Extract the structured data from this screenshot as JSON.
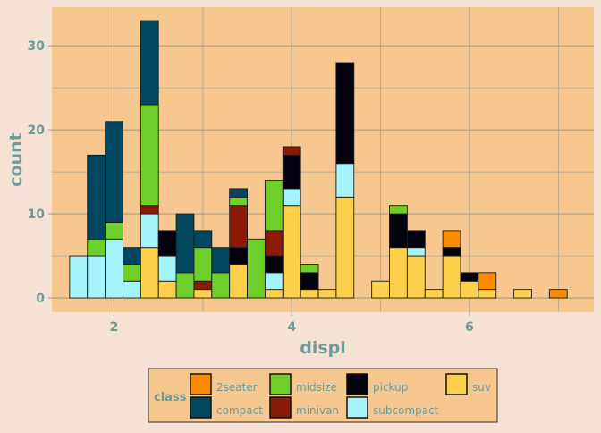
{
  "chart_data": {
    "type": "bar",
    "stacked": true,
    "xlabel": "displ",
    "ylabel": "count",
    "xlim": [
      1.3,
      7.4
    ],
    "ylim": [
      -1.7,
      34.6
    ],
    "x_ticks": [
      2,
      4,
      6
    ],
    "y_ticks": [
      0,
      10,
      20,
      30
    ],
    "x_tick_labels": [
      "2",
      "4",
      "6"
    ],
    "y_tick_labels": [
      "0",
      "10",
      "20",
      "30"
    ],
    "grid": true,
    "legend_placement": "bottom",
    "legend_title": "class",
    "bin_width": 0.2,
    "bin_centers": [
      1.6,
      1.8,
      2.0,
      2.2,
      2.4,
      2.6,
      2.8,
      3.0,
      3.2,
      3.4,
      3.6,
      3.8,
      4.0,
      4.2,
      4.4,
      4.6,
      4.8,
      5.0,
      5.2,
      5.4,
      5.6,
      5.8,
      6.0,
      6.2,
      6.4,
      6.6,
      6.8,
      7.0
    ],
    "series": [
      {
        "name": "2seater",
        "color": "#fb8c00",
        "values": [
          0,
          0,
          0,
          0,
          0,
          0,
          0,
          0,
          0,
          0,
          0,
          0,
          0,
          0,
          0,
          0,
          0,
          0,
          0,
          0,
          0,
          2,
          0,
          2,
          0,
          0,
          0,
          1
        ]
      },
      {
        "name": "compact",
        "color": "#01475f",
        "values": [
          0,
          10,
          12,
          2,
          10,
          0,
          7,
          2,
          3,
          1,
          0,
          0,
          0,
          0,
          0,
          0,
          0,
          0,
          0,
          0,
          0,
          0,
          0,
          0,
          0,
          0,
          0,
          0
        ]
      },
      {
        "name": "midsize",
        "color": "#6ecf2a",
        "values": [
          0,
          2,
          2,
          2,
          12,
          0,
          3,
          4,
          3,
          1,
          7,
          6,
          0,
          1,
          0,
          0,
          0,
          0,
          1,
          0,
          0,
          0,
          0,
          0,
          0,
          0,
          0,
          0
        ]
      },
      {
        "name": "minivan",
        "color": "#8b1a09",
        "values": [
          0,
          0,
          0,
          0,
          1,
          0,
          0,
          1,
          0,
          5,
          0,
          3,
          1,
          0,
          0,
          0,
          0,
          0,
          0,
          0,
          0,
          0,
          0,
          0,
          0,
          0,
          0,
          0
        ]
      },
      {
        "name": "pickup",
        "color": "#03030f",
        "values": [
          0,
          0,
          0,
          0,
          0,
          3,
          0,
          0,
          0,
          2,
          0,
          2,
          4,
          2,
          0,
          12,
          0,
          0,
          4,
          2,
          0,
          1,
          1,
          0,
          0,
          0,
          0,
          0
        ]
      },
      {
        "name": "subcompact",
        "color": "#a6f4fb",
        "values": [
          5,
          5,
          7,
          2,
          4,
          3,
          0,
          0,
          0,
          0,
          0,
          2,
          2,
          0,
          0,
          4,
          0,
          0,
          0,
          1,
          0,
          0,
          0,
          0,
          0,
          0,
          0,
          0
        ]
      },
      {
        "name": "suv",
        "color": "#fecf4a",
        "values": [
          0,
          0,
          0,
          0,
          6,
          2,
          0,
          1,
          0,
          4,
          0,
          1,
          11,
          1,
          1,
          12,
          0,
          2,
          6,
          5,
          1,
          5,
          2,
          1,
          0,
          1,
          0,
          0
        ]
      }
    ]
  },
  "colors": {
    "panel_background": "#f6c890",
    "page_background": "#f6e2d5",
    "grid": "#a59e88",
    "axis_text": "#6d9a98",
    "bar_outline": "#1a1a1a"
  },
  "legend": {
    "title": "class",
    "items": [
      {
        "label": "2seater",
        "color": "#fb8c00"
      },
      {
        "label": "compact",
        "color": "#01475f"
      },
      {
        "label": "midsize",
        "color": "#6ecf2a"
      },
      {
        "label": "minivan",
        "color": "#8b1a09"
      },
      {
        "label": "pickup",
        "color": "#03030f"
      },
      {
        "label": "subcompact",
        "color": "#a6f4fb"
      },
      {
        "label": "suv",
        "color": "#fecf4a"
      }
    ]
  }
}
